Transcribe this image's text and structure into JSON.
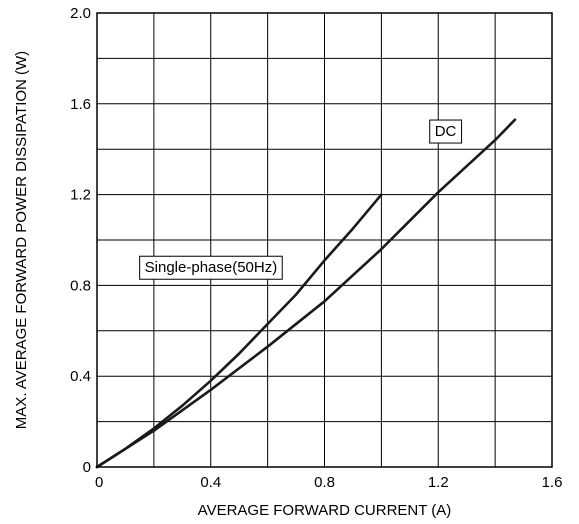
{
  "chart_data": {
    "type": "line",
    "xlabel": "AVERAGE FORWARD CURRENT (A)",
    "ylabel": "MAX. AVERAGE FORWARD POWER DISSIPATION (W)",
    "xlim": [
      0,
      1.6
    ],
    "ylim": [
      0,
      2.0
    ],
    "x_ticks": [
      "0",
      "0.4",
      "0.8",
      "1.2",
      "1.6"
    ],
    "y_ticks": [
      "0",
      "0.4",
      "0.8",
      "1.2",
      "1.6",
      "2.0"
    ],
    "grid": true,
    "series": [
      {
        "name": "Single-phase(50Hz)",
        "x": [
          0,
          0.1,
          0.2,
          0.3,
          0.4,
          0.5,
          0.6,
          0.7,
          0.8,
          0.9,
          1.0
        ],
        "y": [
          0,
          0.08,
          0.17,
          0.27,
          0.38,
          0.5,
          0.63,
          0.76,
          0.91,
          1.05,
          1.2
        ]
      },
      {
        "name": "DC",
        "x": [
          0,
          0.2,
          0.4,
          0.6,
          0.8,
          1.0,
          1.2,
          1.4,
          1.47
        ],
        "y": [
          0,
          0.16,
          0.34,
          0.53,
          0.73,
          0.96,
          1.21,
          1.44,
          1.53
        ]
      }
    ],
    "annotations": [
      {
        "text": "Single-phase(50Hz)",
        "x": 0.15,
        "y": 0.88
      },
      {
        "text": "DC",
        "x": 1.17,
        "y": 1.48
      }
    ]
  }
}
